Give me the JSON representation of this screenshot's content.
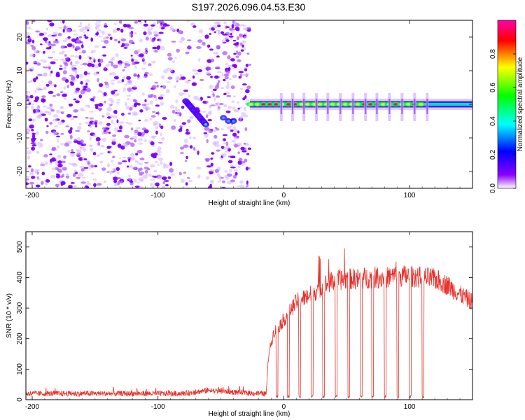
{
  "chart_data": [
    {
      "type": "heatmap",
      "title": "S197.2026.096.04.53.E30",
      "xlabel": "Height of straight line (km)",
      "ylabel": "Frequency (Hz)",
      "xlim": [
        -205,
        150
      ],
      "ylim": [
        -25,
        25
      ],
      "xticks": [
        -200,
        -100,
        0,
        100
      ],
      "yticks": [
        -20,
        -10,
        0,
        10,
        20
      ],
      "colorbar": {
        "label": "Normalized spectral amplitude",
        "range": [
          0,
          1
        ],
        "ticks": [
          "0.0",
          "0.2",
          "0.4",
          "0.6",
          "0.8"
        ],
        "tick_values": [
          0.0,
          0.2,
          0.4,
          0.6,
          0.8
        ],
        "colors": [
          "#ffffff",
          "#8a00ff",
          "#0000ff",
          "#00ffff",
          "#00ff00",
          "#ffff00",
          "#ff0000",
          "#ff00aa"
        ]
      },
      "features": {
        "noise_region_end_km": -27,
        "diagonal_trace_start": [
          -78,
          1
        ],
        "diagonal_trace_end": [
          -62,
          -6
        ],
        "tone_frequency_hz": 0,
        "tone_start_km": -27,
        "tone_end_km": 150,
        "pulse_spacing_km": 10
      }
    },
    {
      "type": "line",
      "title": "",
      "xlabel": "Height of straight line (km)",
      "ylabel": "SNR (10 * v/v)",
      "xlim": [
        -205,
        150
      ],
      "ylim": [
        0,
        550
      ],
      "xticks": [
        -200,
        -100,
        0,
        100
      ],
      "yticks": [
        0,
        100,
        200,
        300,
        400,
        500
      ],
      "series": [
        {
          "name": "SNR",
          "color": "#e8302a",
          "envelope": [
            [
              -205,
              20
            ],
            [
              -80,
              20
            ],
            [
              -60,
              30
            ],
            [
              -40,
              25
            ],
            [
              -20,
              20
            ],
            [
              -14,
              20
            ],
            [
              -12,
              150
            ],
            [
              -8,
              220
            ],
            [
              0,
              260
            ],
            [
              10,
              320
            ],
            [
              20,
              340
            ],
            [
              30,
              370
            ],
            [
              40,
              390
            ],
            [
              50,
              395
            ],
            [
              60,
              395
            ],
            [
              70,
              400
            ],
            [
              80,
              400
            ],
            [
              90,
              405
            ],
            [
              100,
              405
            ],
            [
              110,
              400
            ],
            [
              120,
              395
            ],
            [
              130,
              375
            ],
            [
              140,
              345
            ],
            [
              150,
              320
            ]
          ],
          "dropouts_km": [
            -6,
            3,
            12,
            22,
            31,
            41,
            51,
            61,
            70,
            80,
            90,
            100,
            110
          ]
        }
      ]
    }
  ]
}
